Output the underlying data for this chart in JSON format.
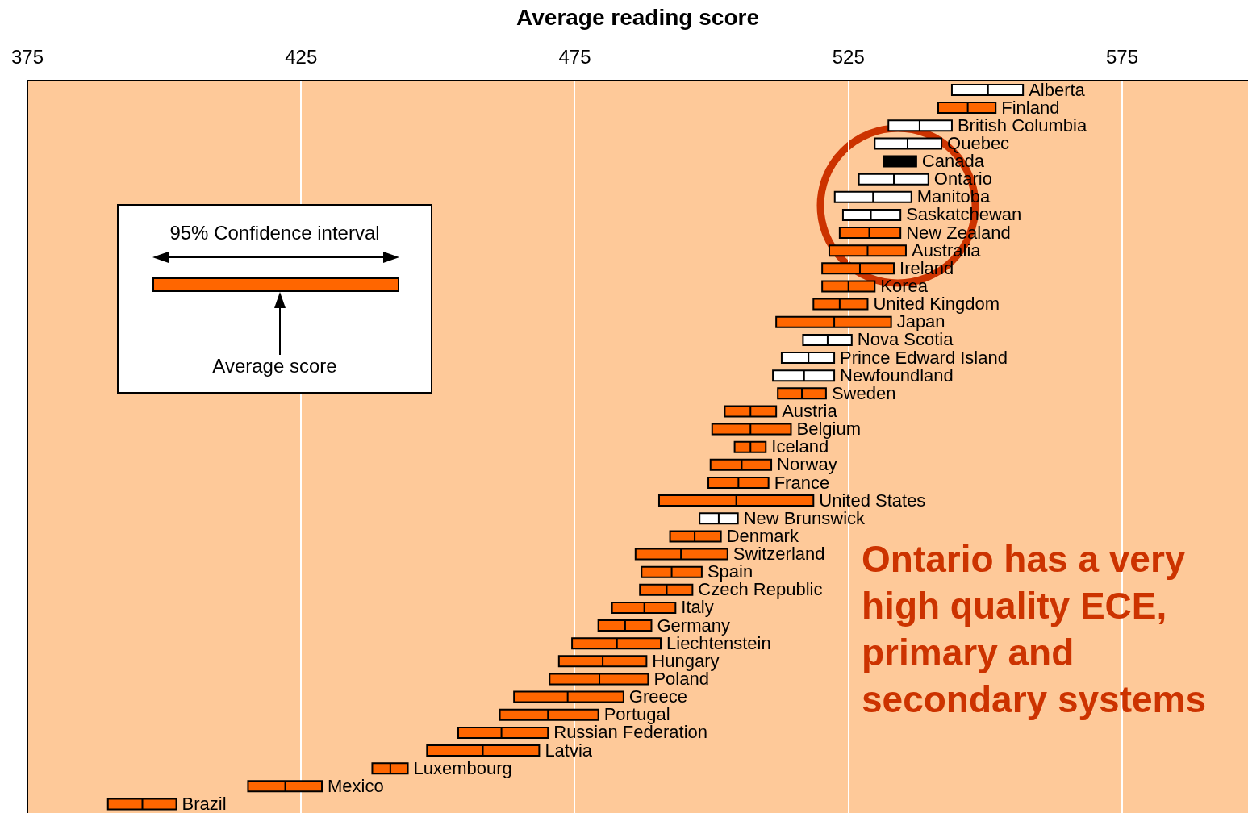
{
  "chart_data": {
    "type": "box",
    "orientation": "horizontal",
    "xlabel": "Average reading score",
    "categories": [
      "Alberta",
      "Finland",
      "British Columbia",
      "Quebec",
      "Canada",
      "Ontario",
      "Manitoba",
      "Saskatchewan",
      "New Zealand",
      "Australia",
      "Ireland",
      "Korea",
      "United Kingdom",
      "Japan",
      "Nova Scotia",
      "Prince Edward Island",
      "Newfoundland",
      "Sweden",
      "Austria",
      "Belgium",
      "Iceland",
      "Norway",
      "France",
      "United States",
      "New Brunswick",
      "Denmark",
      "Switzerland",
      "Spain",
      "Czech Republic",
      "Italy",
      "Germany",
      "Liechtenstein",
      "Hungary",
      "Poland",
      "Greece",
      "Portugal",
      "Russian Federation",
      "Latvia",
      "Luxembourg",
      "Mexico",
      "Brazil"
    ],
    "boxes": [
      {
        "low": 543.9,
        "q1": 543.9,
        "median": 550.5,
        "q3": 556.9,
        "high": 556.9
      },
      {
        "low": 541.4,
        "q1": 541.4,
        "median": 546.8,
        "q3": 551.9,
        "high": 551.9
      },
      {
        "low": 532.3,
        "q1": 532.3,
        "median": 538.0,
        "q3": 543.9,
        "high": 543.9
      },
      {
        "low": 529.8,
        "q1": 529.8,
        "median": 535.8,
        "q3": 542.0,
        "high": 542.0
      },
      {
        "low": 531.4,
        "q1": 531.4,
        "median": 534.4,
        "q3": 537.4,
        "high": 537.4
      },
      {
        "low": 526.9,
        "q1": 526.9,
        "median": 533.3,
        "q3": 539.6,
        "high": 539.6
      },
      {
        "low": 522.5,
        "q1": 522.5,
        "median": 529.5,
        "q3": 536.5,
        "high": 536.5
      },
      {
        "low": 524.0,
        "q1": 524.0,
        "median": 529.1,
        "q3": 534.5,
        "high": 534.5
      },
      {
        "low": 523.4,
        "q1": 523.4,
        "median": 528.8,
        "q3": 534.5,
        "high": 534.5
      },
      {
        "low": 521.5,
        "q1": 521.5,
        "median": 528.5,
        "q3": 535.5,
        "high": 535.5
      },
      {
        "low": 520.2,
        "q1": 520.2,
        "median": 527.1,
        "q3": 533.3,
        "high": 533.3
      },
      {
        "low": 520.2,
        "q1": 520.2,
        "median": 525.0,
        "q3": 529.8,
        "high": 529.8
      },
      {
        "low": 518.6,
        "q1": 518.6,
        "median": 523.4,
        "q3": 528.5,
        "high": 528.5
      },
      {
        "low": 511.8,
        "q1": 511.8,
        "median": 522.4,
        "q3": 532.8,
        "high": 532.8
      },
      {
        "low": 516.7,
        "q1": 516.7,
        "median": 521.2,
        "q3": 525.6,
        "high": 525.6
      },
      {
        "low": 512.8,
        "q1": 512.8,
        "median": 517.7,
        "q3": 522.4,
        "high": 522.4
      },
      {
        "low": 511.2,
        "q1": 511.2,
        "median": 516.9,
        "q3": 522.4,
        "high": 522.4
      },
      {
        "low": 512.1,
        "q1": 512.1,
        "median": 516.5,
        "q3": 520.9,
        "high": 520.9
      },
      {
        "low": 502.4,
        "q1": 502.4,
        "median": 507.1,
        "q3": 511.8,
        "high": 511.8
      },
      {
        "low": 500.1,
        "q1": 500.1,
        "median": 507.1,
        "q3": 514.5,
        "high": 514.5
      },
      {
        "low": 504.2,
        "q1": 504.2,
        "median": 507.1,
        "q3": 509.9,
        "high": 509.9
      },
      {
        "low": 499.8,
        "q1": 499.8,
        "median": 505.5,
        "q3": 510.9,
        "high": 510.9
      },
      {
        "low": 499.4,
        "q1": 499.4,
        "median": 504.9,
        "q3": 510.4,
        "high": 510.4
      },
      {
        "low": 490.4,
        "q1": 490.4,
        "median": 504.5,
        "q3": 518.6,
        "high": 518.6
      },
      {
        "low": 497.8,
        "q1": 497.8,
        "median": 501.3,
        "q3": 504.8,
        "high": 504.8
      },
      {
        "low": 492.4,
        "q1": 492.4,
        "median": 496.9,
        "q3": 501.7,
        "high": 501.7
      },
      {
        "low": 486.1,
        "q1": 486.1,
        "median": 494.4,
        "q3": 502.9,
        "high": 502.9
      },
      {
        "low": 487.2,
        "q1": 487.2,
        "median": 492.7,
        "q3": 498.2,
        "high": 498.2
      },
      {
        "low": 486.9,
        "q1": 486.9,
        "median": 491.8,
        "q3": 496.5,
        "high": 496.5
      },
      {
        "low": 481.8,
        "q1": 481.8,
        "median": 487.7,
        "q3": 493.4,
        "high": 493.4
      },
      {
        "low": 479.3,
        "q1": 479.3,
        "median": 484.2,
        "q3": 489.0,
        "high": 489.0
      },
      {
        "low": 474.5,
        "q1": 474.5,
        "median": 482.7,
        "q3": 490.7,
        "high": 490.7
      },
      {
        "low": 472.1,
        "q1": 472.1,
        "median": 480.1,
        "q3": 488.1,
        "high": 488.1
      },
      {
        "low": 470.4,
        "q1": 470.4,
        "median": 479.5,
        "q3": 488.4,
        "high": 488.4
      },
      {
        "low": 463.9,
        "q1": 463.9,
        "median": 473.7,
        "q3": 483.9,
        "high": 483.9
      },
      {
        "low": 461.3,
        "q1": 461.3,
        "median": 470.1,
        "q3": 479.3,
        "high": 479.3
      },
      {
        "low": 453.7,
        "q1": 453.7,
        "median": 461.6,
        "q3": 470.1,
        "high": 470.1
      },
      {
        "low": 448.0,
        "q1": 448.0,
        "median": 458.2,
        "q3": 468.5,
        "high": 468.5
      },
      {
        "low": 438.0,
        "q1": 438.0,
        "median": 441.3,
        "q3": 444.5,
        "high": 444.5
      },
      {
        "low": 415.3,
        "q1": 415.3,
        "median": 422.1,
        "q3": 428.8,
        "high": 428.8
      },
      {
        "low": 389.7,
        "q1": 389.7,
        "median": 396.0,
        "q3": 402.2,
        "high": 402.2
      }
    ],
    "colors": [
      "#ffffff",
      "#ff6600",
      "#ffffff",
      "#ffffff",
      "#000000",
      "#ffffff",
      "#ffffff",
      "#ffffff",
      "#ff6600",
      "#ff6600",
      "#ff6600",
      "#ff6600",
      "#ff6600",
      "#ff6600",
      "#ffffff",
      "#ffffff",
      "#ffffff",
      "#ff6600",
      "#ff6600",
      "#ff6600",
      "#ff6600",
      "#ff6600",
      "#ff6600",
      "#ff6600",
      "#ffffff",
      "#ff6600",
      "#ff6600",
      "#ff6600",
      "#ff6600",
      "#ff6600",
      "#ff6600",
      "#ff6600",
      "#ff6600",
      "#ff6600",
      "#ff6600",
      "#ff6600",
      "#ff6600",
      "#ff6600",
      "#ff6600",
      "#ff6600",
      "#ff6600"
    ],
    "xlim": [
      375,
      598
    ],
    "xticks": [
      375,
      425,
      475,
      525,
      575
    ],
    "grid": "x",
    "annotations": [
      "95% Confidence interval",
      "Average score",
      "Ontario has a very high quality ECE, primary and secondary systems"
    ]
  }
}
